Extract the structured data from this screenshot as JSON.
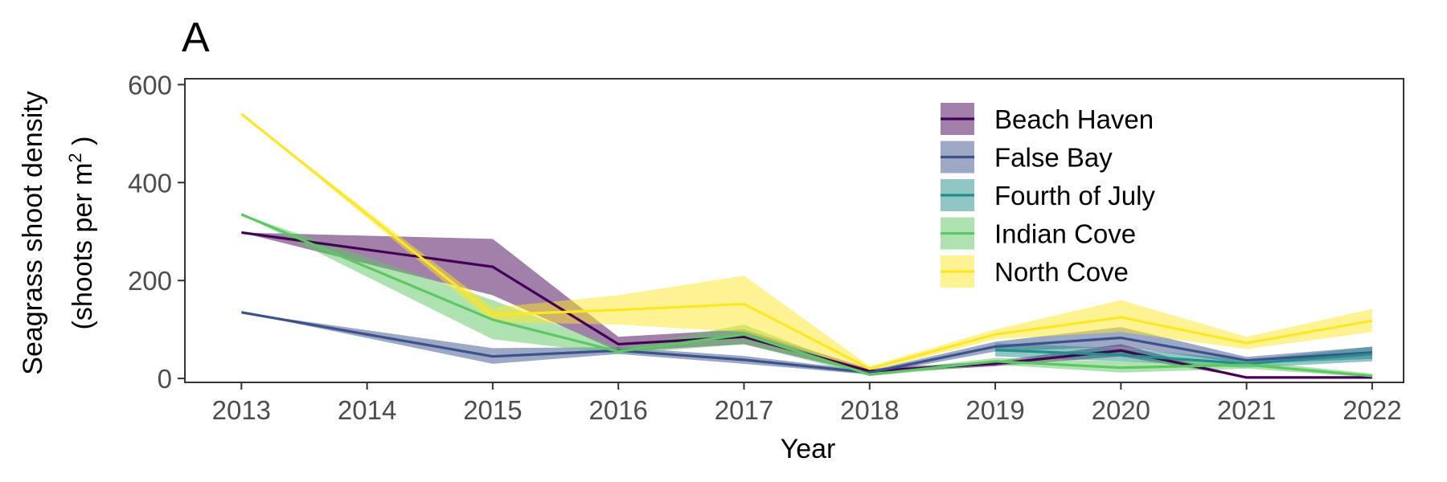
{
  "panel_tag": "A",
  "chart_data": {
    "type": "line",
    "title": "",
    "xlabel": "Year",
    "ylabel_line1": "Seagrass shoot density",
    "ylabel_line2_prefix": "(shoots per m",
    "ylabel_line2_sup": "2",
    "ylabel_line2_suffix": " )",
    "x": [
      2013,
      2014,
      2015,
      2016,
      2017,
      2018,
      2019,
      2020,
      2021,
      2022
    ],
    "x_tick_labels": [
      "2013",
      "2014",
      "2015",
      "2016",
      "2017",
      "2018",
      "2019",
      "2020",
      "2021",
      "2022"
    ],
    "xlim": [
      2012.55,
      2022.25
    ],
    "ylim": [
      -8,
      612
    ],
    "y_ticks": [
      0,
      200,
      400,
      600
    ],
    "y_tick_labels": [
      "0",
      "200",
      "400",
      "600"
    ],
    "grid": false,
    "legend_position": "top-right",
    "series": [
      {
        "name": "Beach Haven",
        "color": "#440154",
        "x": [
          2013,
          2015,
          2016,
          2017,
          2018,
          2019,
          2020,
          2021,
          2022
        ],
        "values": [
          298,
          228,
          70,
          85,
          15,
          30,
          57,
          2,
          2
        ],
        "lower": [
          298,
          170,
          55,
          70,
          10,
          25,
          45,
          2,
          2
        ],
        "upper": [
          298,
          285,
          85,
          100,
          20,
          35,
          70,
          2,
          2
        ]
      },
      {
        "name": "False Bay",
        "color": "#3b528b",
        "x": [
          2013,
          2015,
          2016,
          2017,
          2018,
          2019,
          2020,
          2021,
          2022
        ],
        "values": [
          135,
          45,
          57,
          38,
          12,
          65,
          83,
          37,
          53
        ],
        "lower": [
          135,
          30,
          50,
          30,
          8,
          55,
          65,
          30,
          40
        ],
        "upper": [
          135,
          62,
          64,
          46,
          16,
          75,
          105,
          44,
          65
        ]
      },
      {
        "name": "Fourth of July",
        "color": "#21908c",
        "x": [
          2019,
          2020,
          2021,
          2022
        ],
        "values": [
          58,
          48,
          30,
          50
        ],
        "lower": [
          45,
          35,
          22,
          35
        ],
        "upper": [
          72,
          62,
          38,
          65
        ]
      },
      {
        "name": "Indian Cove",
        "color": "#5dc863",
        "x": [
          2013,
          2015,
          2016,
          2017,
          2018,
          2019,
          2020,
          2021,
          2022
        ],
        "values": [
          335,
          120,
          55,
          90,
          8,
          35,
          22,
          28,
          5
        ],
        "lower": [
          335,
          80,
          50,
          70,
          5,
          28,
          12,
          20,
          2
        ],
        "upper": [
          335,
          160,
          62,
          110,
          12,
          42,
          35,
          36,
          10
        ]
      },
      {
        "name": "North Cove",
        "color": "#fde725",
        "x": [
          2013,
          2015,
          2016,
          2017,
          2018,
          2019,
          2020,
          2021,
          2022
        ],
        "values": [
          540,
          130,
          140,
          152,
          20,
          90,
          125,
          72,
          118
        ],
        "lower": [
          540,
          115,
          110,
          95,
          15,
          80,
          95,
          60,
          95
        ],
        "upper": [
          540,
          145,
          170,
          210,
          25,
          100,
          160,
          85,
          142
        ]
      }
    ]
  }
}
